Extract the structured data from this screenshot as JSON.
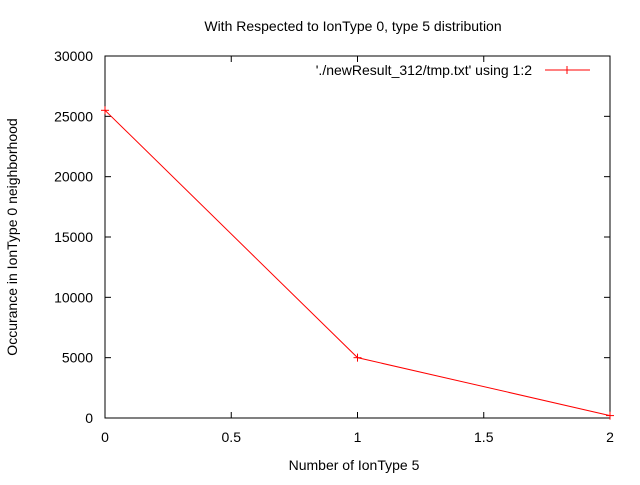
{
  "chart_data": {
    "type": "line",
    "title": "With Respected to IonType 0, type 5 distribution",
    "xlabel": "Number of IonType 5",
    "ylabel": "Occurance in IonType 0 neighborhood",
    "xlim": [
      0,
      2
    ],
    "ylim": [
      0,
      30000
    ],
    "x_ticks": [
      "0",
      "0.5",
      "1",
      "1.5",
      "2"
    ],
    "y_ticks": [
      "0",
      "5000",
      "10000",
      "15000",
      "20000",
      "25000",
      "30000"
    ],
    "grid": false,
    "legend_position": "top-right",
    "series": [
      {
        "name": "'./newResult_312/tmp.txt' using 1:2",
        "color": "#ff0000",
        "marker": "plus",
        "x": [
          0,
          1,
          2
        ],
        "values": [
          25500,
          5000,
          200
        ]
      }
    ]
  }
}
